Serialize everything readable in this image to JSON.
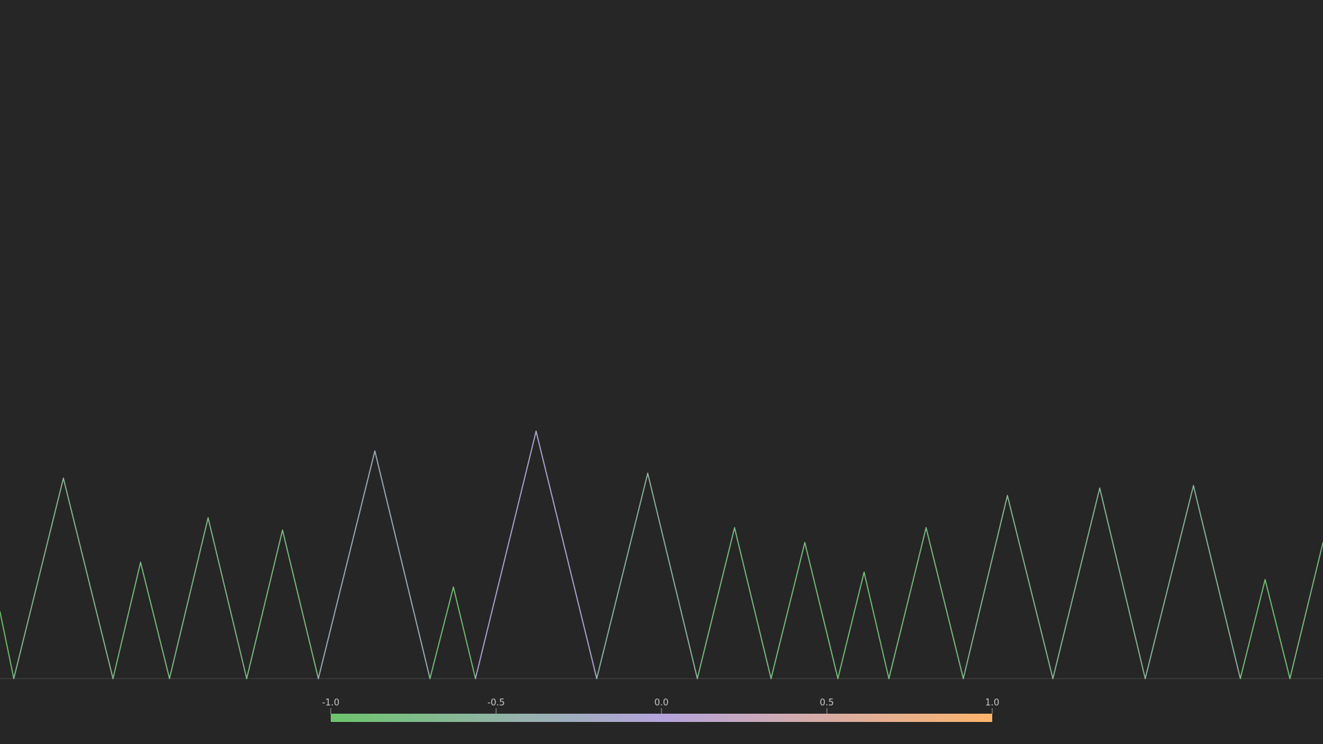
{
  "chart_data": {
    "type": "line",
    "title": "",
    "xlabel": "",
    "ylabel": "",
    "grid": false,
    "background": "#262626",
    "x": [
      0,
      20,
      92,
      164,
      204,
      246,
      302,
      358,
      410,
      462,
      544,
      624,
      658,
      690,
      778,
      866,
      940,
      1012,
      1066,
      1119,
      1168,
      1216,
      1254,
      1290,
      1344,
      1398,
      1462,
      1528,
      1596,
      1662,
      1732,
      1800,
      1836,
      1872,
      1920
    ],
    "y": [
      0.27,
      0,
      0.81,
      0,
      0.47,
      0,
      0.65,
      0,
      0.6,
      0,
      0.92,
      0,
      0.37,
      0,
      1.0,
      0,
      0.83,
      0,
      0.61,
      0,
      0.55,
      0,
      0.43,
      0,
      0.61,
      0,
      0.74,
      0,
      0.77,
      0,
      0.78,
      0,
      0.4,
      0,
      0.55
    ],
    "color_values": [
      -1.0,
      -1.0,
      -0.25,
      -1.0,
      -0.7,
      -1.0,
      -0.45,
      -1.0,
      -0.6,
      -1.0,
      0.35,
      -1.0,
      -0.85,
      -1.0,
      0.85,
      -1.0,
      -0.05,
      -1.0,
      -0.6,
      -1.0,
      -0.7,
      -1.0,
      -0.85,
      -1.0,
      -0.6,
      -1.0,
      -0.25,
      -1.0,
      -0.2,
      -1.0,
      -0.15,
      -1.0,
      -0.9,
      -1.0,
      -0.6
    ],
    "ylim": [
      0,
      1
    ],
    "line_color": "#d0d0d0",
    "baseline_color": "#444444",
    "colorbar": {
      "ticks": [
        "-1.0",
        "-0.5",
        "0.0",
        "0.5",
        "1.0"
      ],
      "tick_values": [
        -1.0,
        -0.5,
        0.0,
        0.5,
        1.0
      ],
      "range": [
        -1.0,
        1.0
      ],
      "colors": [
        "#6cc46c",
        "#b4a4dc",
        "#fcb46c"
      ]
    }
  }
}
